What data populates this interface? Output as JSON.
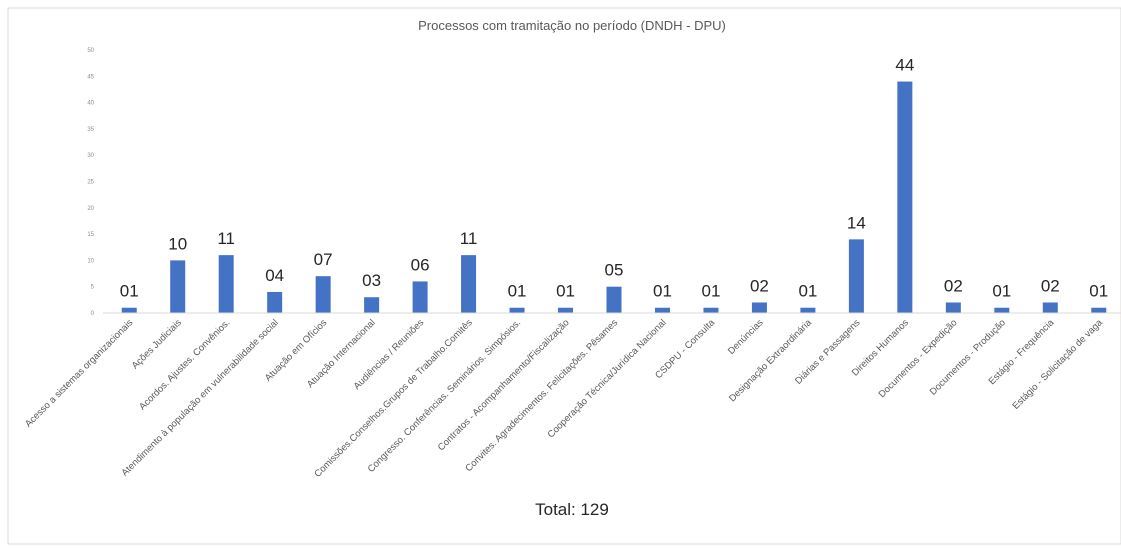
{
  "chart_data": {
    "type": "bar",
    "title": "Processos com tramitação no período (DNDH - DPU)",
    "footer": "Total: 129",
    "ylim": [
      0,
      50
    ],
    "yticks": [
      "0",
      "5",
      "10",
      "15",
      "20",
      "25",
      "30",
      "35",
      "40",
      "45",
      "50"
    ],
    "grid": false,
    "bar_color": "#4472c4",
    "categories": [
      "Acesso a sistemas organizacionais",
      "Ações Judiciais",
      "Acordos. Ajustes. Convênios.",
      "Atendimento à população em vulnerabilidade social",
      "Atuação em Ofícios",
      "Atuação Internacional",
      "Audiências / Reuniões",
      "Comissões.Conselhos.Grupos de Trabalho.Comitês",
      "Congresso. Conferências. Seminários. Simpósios.",
      "Contratos - Acompanhamento/Fiscalização",
      "Convites. Agradecimentos. Felicitações. Pêsames",
      "Cooperação Técnica/Jurídica Nacional",
      "CSDPU - Consulta",
      "Denúncias",
      "Designação Extraordinária",
      "Diárias e Passagens",
      "Direitos Humanos",
      "Documentos - Expedição",
      "Documentos - Produção",
      "Estágio - Frequência",
      "Estágio - Solicitação de vaga"
    ],
    "values": [
      1,
      10,
      11,
      4,
      7,
      3,
      6,
      11,
      1,
      1,
      5,
      1,
      1,
      2,
      1,
      14,
      44,
      2,
      1,
      2,
      1
    ],
    "data_labels": [
      "01",
      "10",
      "11",
      "04",
      "07",
      "03",
      "06",
      "11",
      "01",
      "01",
      "05",
      "01",
      "01",
      "02",
      "01",
      "14",
      "44",
      "02",
      "01",
      "02",
      "01"
    ]
  }
}
